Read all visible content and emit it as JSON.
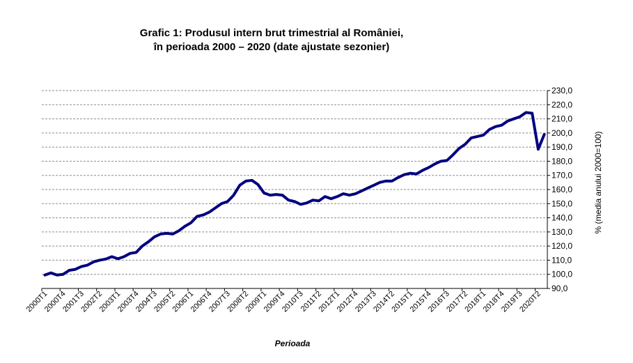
{
  "chart_data": {
    "type": "line",
    "title_lines": [
      "Grafic 1: Produsul intern brut trimestrial al României,",
      "în perioada 2000 – 2020 (date ajustate sezonier)"
    ],
    "xlabel": "Perioada",
    "ylabel": "% (media anului 2000=100)",
    "ylim": [
      90,
      230
    ],
    "ytick_step": 10,
    "y_axis_side": "right",
    "grid": "horizontal-dashed",
    "line_color": "#000080",
    "x_tick_labels_shown": [
      "2000T1",
      "2000T4",
      "2001T3",
      "2002T2",
      "2003T1",
      "2003T4",
      "2004T3",
      "2005T2",
      "2006T1",
      "2006T4",
      "2007T3",
      "2008T2",
      "2009T1",
      "2009T4",
      "2010T3",
      "2011T2",
      "2012T1",
      "2012T4",
      "2013T3",
      "2014T2",
      "2015T1",
      "2015T4",
      "2016T3",
      "2017T2",
      "2018T1",
      "2018T4",
      "2019T3",
      "2020T2"
    ],
    "x": [
      "2000T1",
      "2000T2",
      "2000T3",
      "2000T4",
      "2001T1",
      "2001T2",
      "2001T3",
      "2001T4",
      "2002T1",
      "2002T2",
      "2002T3",
      "2002T4",
      "2003T1",
      "2003T2",
      "2003T3",
      "2003T4",
      "2004T1",
      "2004T2",
      "2004T3",
      "2004T4",
      "2005T1",
      "2005T2",
      "2005T3",
      "2005T4",
      "2006T1",
      "2006T2",
      "2006T3",
      "2006T4",
      "2007T1",
      "2007T2",
      "2007T3",
      "2007T4",
      "2008T1",
      "2008T2",
      "2008T3",
      "2008T4",
      "2009T1",
      "2009T2",
      "2009T3",
      "2009T4",
      "2010T1",
      "2010T2",
      "2010T3",
      "2010T4",
      "2011T1",
      "2011T2",
      "2011T3",
      "2011T4",
      "2012T1",
      "2012T2",
      "2012T3",
      "2012T4",
      "2013T1",
      "2013T2",
      "2013T3",
      "2013T4",
      "2014T1",
      "2014T2",
      "2014T3",
      "2014T4",
      "2015T1",
      "2015T2",
      "2015T3",
      "2015T4",
      "2016T1",
      "2016T2",
      "2016T3",
      "2016T4",
      "2017T1",
      "2017T2",
      "2017T3",
      "2017T4",
      "2018T1",
      "2018T2",
      "2018T3",
      "2018T4",
      "2019T1",
      "2019T2",
      "2019T3",
      "2019T4",
      "2020T1",
      "2020T2",
      "2020T3"
    ],
    "values": [
      99.5,
      101.0,
      99.5,
      100.0,
      102.8,
      103.5,
      105.5,
      106.5,
      108.8,
      110.0,
      110.8,
      112.5,
      111.0,
      112.5,
      114.8,
      115.5,
      120.0,
      123.0,
      126.5,
      128.5,
      129.0,
      128.5,
      130.8,
      134.0,
      136.5,
      141.0,
      142.0,
      144.0,
      147.0,
      150.0,
      151.5,
      156.0,
      163.0,
      166.0,
      166.5,
      163.5,
      157.5,
      156.0,
      156.5,
      156.0,
      152.5,
      151.5,
      149.5,
      150.5,
      152.5,
      152.0,
      155.0,
      153.5,
      155.0,
      157.0,
      156.0,
      157.0,
      159.0,
      161.0,
      163.0,
      165.0,
      166.0,
      166.0,
      168.5,
      170.5,
      171.5,
      171.0,
      173.5,
      175.5,
      178.0,
      180.0,
      180.5,
      184.5,
      189.0,
      192.0,
      196.5,
      197.5,
      198.5,
      202.5,
      204.5,
      205.5,
      208.5,
      210.0,
      211.5,
      214.5,
      214.0,
      188.5,
      199.0
    ]
  }
}
